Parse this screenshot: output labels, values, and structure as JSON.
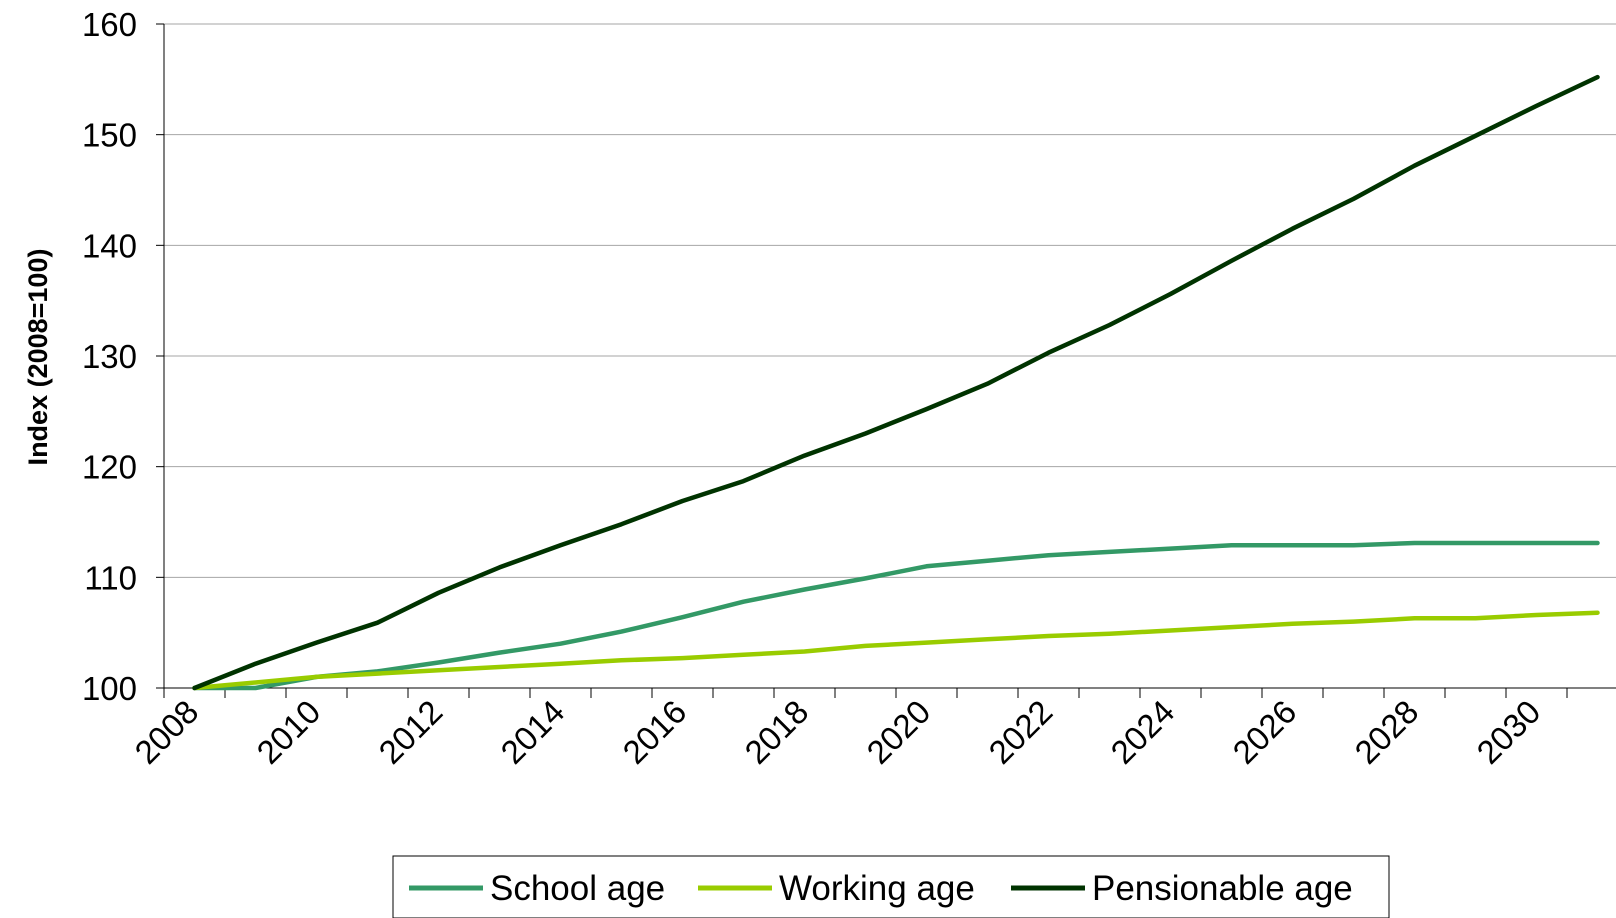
{
  "chart_data": {
    "type": "line",
    "title": "",
    "xlabel": "",
    "ylabel": "Index (2008=100)",
    "x": [
      2008,
      2009,
      2010,
      2011,
      2012,
      2013,
      2014,
      2015,
      2016,
      2017,
      2018,
      2019,
      2020,
      2021,
      2022,
      2023,
      2024,
      2025,
      2026,
      2027,
      2028,
      2029,
      2030,
      2031
    ],
    "xlim": [
      2008,
      2031
    ],
    "x_ticks": [
      "2008",
      "2010",
      "2012",
      "2014",
      "2016",
      "2018",
      "2020",
      "2022",
      "2024",
      "2026",
      "2028",
      "2030"
    ],
    "ylim": [
      100,
      160
    ],
    "y_ticks": [
      "100",
      "110",
      "120",
      "130",
      "140",
      "150",
      "160"
    ],
    "grid": "horizontal",
    "legend": "bottom",
    "series": [
      {
        "name": "School age",
        "color": "#339966",
        "values": [
          100,
          100.0,
          101.0,
          101.5,
          102.3,
          103.2,
          104.0,
          105.1,
          106.4,
          107.8,
          108.9,
          109.9,
          111.0,
          111.5,
          112.0,
          112.3,
          112.6,
          112.9,
          112.9,
          112.9,
          113.1,
          113.1,
          113.1,
          113.1
        ]
      },
      {
        "name": "Working age",
        "color": "#99cc00",
        "values": [
          100,
          100.5,
          101.0,
          101.3,
          101.6,
          101.9,
          102.2,
          102.5,
          102.7,
          103.0,
          103.3,
          103.8,
          104.1,
          104.4,
          104.7,
          104.9,
          105.2,
          105.5,
          105.8,
          106.0,
          106.3,
          106.3,
          106.6,
          106.8
        ]
      },
      {
        "name": "Pensionable age",
        "color": "#003300",
        "values": [
          100,
          102.2,
          104.1,
          105.9,
          108.6,
          110.9,
          112.9,
          114.8,
          116.9,
          118.7,
          121.0,
          123.0,
          125.2,
          127.5,
          130.3,
          132.8,
          135.6,
          138.6,
          141.5,
          144.2,
          147.2,
          149.9,
          152.6,
          155.2
        ]
      }
    ]
  }
}
